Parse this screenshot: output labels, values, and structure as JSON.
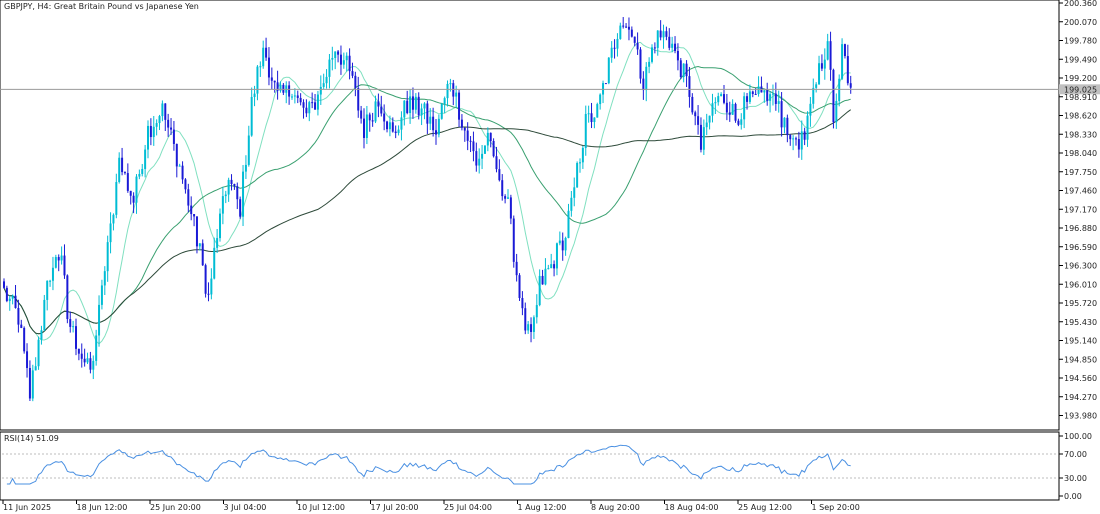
{
  "chart_data": [
    {
      "type": "candlestick",
      "title": "GBPJPY, H4:  Great Britain Pound vs Japanese Yen",
      "y_ticks": [
        "200.360",
        "200.070",
        "199.780",
        "199.490",
        "199.200",
        "198.910",
        "198.620",
        "198.330",
        "198.040",
        "197.750",
        "197.460",
        "197.170",
        "196.880",
        "196.590",
        "196.300",
        "196.010",
        "195.720",
        "195.430",
        "195.140",
        "194.850",
        "194.560",
        "194.270",
        "193.980"
      ],
      "ylim": [
        193.79,
        200.4
      ],
      "current_price": "199.025",
      "current_price_value": 199.025,
      "x_tick_labels": [
        "11 Jun 2025",
        "18 Jun 12:00",
        "25 Jun 20:00",
        "3 Jul 04:00",
        "10 Jul 12:00",
        "17 Jul 20:00",
        "25 Jul 04:00",
        "1 Aug 12:00",
        "8 Aug 20:00",
        "18 Aug 04:00",
        "25 Aug 12:00",
        "1 Sep 20:00"
      ],
      "bull_color": "#00bcd4",
      "bear_color": "#1a1ad6",
      "ma_colors": [
        "#80e0c0",
        "#3aa070",
        "#2e4a3a"
      ],
      "anchors": [
        {
          "i": 0,
          "p": 195.9
        },
        {
          "i": 5,
          "p": 195.5
        },
        {
          "i": 9,
          "p": 194.3
        },
        {
          "i": 13,
          "p": 195.4
        },
        {
          "i": 16,
          "p": 196.2
        },
        {
          "i": 20,
          "p": 196.5
        },
        {
          "i": 22,
          "p": 195.5
        },
        {
          "i": 26,
          "p": 195.0
        },
        {
          "i": 30,
          "p": 194.6
        },
        {
          "i": 35,
          "p": 196.2
        },
        {
          "i": 40,
          "p": 197.9
        },
        {
          "i": 45,
          "p": 197.3
        },
        {
          "i": 50,
          "p": 198.4
        },
        {
          "i": 55,
          "p": 198.7
        },
        {
          "i": 60,
          "p": 198.0
        },
        {
          "i": 64,
          "p": 197.3
        },
        {
          "i": 68,
          "p": 196.5
        },
        {
          "i": 71,
          "p": 195.8
        },
        {
          "i": 74,
          "p": 196.8
        },
        {
          "i": 78,
          "p": 197.6
        },
        {
          "i": 82,
          "p": 197.2
        },
        {
          "i": 86,
          "p": 198.8
        },
        {
          "i": 90,
          "p": 199.7
        },
        {
          "i": 95,
          "p": 198.9
        },
        {
          "i": 100,
          "p": 199.0
        },
        {
          "i": 105,
          "p": 198.6
        },
        {
          "i": 110,
          "p": 199.0
        },
        {
          "i": 115,
          "p": 199.7
        },
        {
          "i": 120,
          "p": 199.3
        },
        {
          "i": 125,
          "p": 198.4
        },
        {
          "i": 130,
          "p": 198.9
        },
        {
          "i": 135,
          "p": 198.3
        },
        {
          "i": 140,
          "p": 198.8
        },
        {
          "i": 145,
          "p": 198.7
        },
        {
          "i": 150,
          "p": 198.4
        },
        {
          "i": 155,
          "p": 199.2
        },
        {
          "i": 160,
          "p": 198.4
        },
        {
          "i": 164,
          "p": 197.9
        },
        {
          "i": 168,
          "p": 198.2
        },
        {
          "i": 172,
          "p": 197.7
        },
        {
          "i": 175,
          "p": 197.2
        },
        {
          "i": 180,
          "p": 195.5
        },
        {
          "i": 183,
          "p": 195.1
        },
        {
          "i": 186,
          "p": 196.0
        },
        {
          "i": 190,
          "p": 196.3
        },
        {
          "i": 195,
          "p": 196.8
        },
        {
          "i": 198,
          "p": 197.5
        },
        {
          "i": 202,
          "p": 198.5
        },
        {
          "i": 206,
          "p": 198.7
        },
        {
          "i": 210,
          "p": 199.4
        },
        {
          "i": 214,
          "p": 200.1
        },
        {
          "i": 218,
          "p": 199.9
        },
        {
          "i": 222,
          "p": 199.1
        },
        {
          "i": 226,
          "p": 199.8
        },
        {
          "i": 230,
          "p": 199.9
        },
        {
          "i": 234,
          "p": 199.5
        },
        {
          "i": 238,
          "p": 199.0
        },
        {
          "i": 242,
          "p": 198.1
        },
        {
          "i": 246,
          "p": 198.8
        },
        {
          "i": 250,
          "p": 198.9
        },
        {
          "i": 254,
          "p": 198.6
        },
        {
          "i": 258,
          "p": 198.8
        },
        {
          "i": 262,
          "p": 198.9
        },
        {
          "i": 266,
          "p": 199.0
        },
        {
          "i": 270,
          "p": 198.6
        },
        {
          "i": 274,
          "p": 198.3
        },
        {
          "i": 278,
          "p": 198.2
        },
        {
          "i": 282,
          "p": 199.2
        },
        {
          "i": 286,
          "p": 199.8
        },
        {
          "i": 288,
          "p": 198.6
        },
        {
          "i": 291,
          "p": 199.7
        },
        {
          "i": 294,
          "p": 199.05
        }
      ],
      "ma_params": [
        {
          "period": 12,
          "shift": 0.0
        },
        {
          "period": 40,
          "shift": 0.0
        },
        {
          "period": 110,
          "shift": 0.0
        }
      ]
    },
    {
      "type": "line",
      "title": "RSI(14) 51.09",
      "y_ticks": [
        "100.00",
        "70.00",
        "30.00",
        "0.00"
      ],
      "ylim": [
        0,
        100
      ],
      "levels": [
        70,
        30
      ],
      "line_color": "#4a90e2"
    }
  ]
}
